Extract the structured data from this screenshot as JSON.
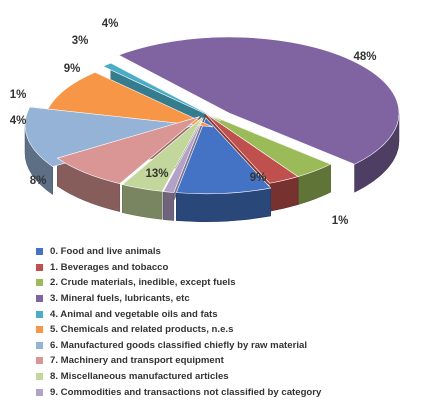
{
  "chart_data": {
    "type": "pie",
    "title": "",
    "labels": [
      "0. Food and live animals",
      "1.  Beverages and tobacco",
      "2. Crude materials, inedible, except fuels",
      "3. Mineral fuels, lubricants, etc",
      "4. Animal and vegetable oils and fats",
      "5. Chemicals and related products, n.e.s",
      "6. Manufactured goods classified chiefly by raw material",
      "7. Machinery and transport equipment",
      "8. Miscellaneous manufactured articles",
      "9. Commodities and transactions not classified by category"
    ],
    "values": [
      9,
      3,
      4,
      48,
      1,
      9,
      13,
      8,
      4,
      1
    ],
    "value_labels": [
      "9%",
      "3%",
      "4%",
      "48%",
      "1%",
      "9%",
      "13%",
      "8%",
      "4%",
      "1%"
    ],
    "colors": [
      "#4472C4",
      "#C0504D",
      "#9BBB59",
      "#8064A2",
      "#4BACC6",
      "#F79646",
      "#95B3D7",
      "#D99694",
      "#C3D69B",
      "#B3A2C7"
    ],
    "exploded": [
      "0",
      "3",
      "4",
      "5",
      "6",
      "7",
      "8",
      "9"
    ],
    "legend_position": "bottom",
    "style": "3d-exploded"
  }
}
